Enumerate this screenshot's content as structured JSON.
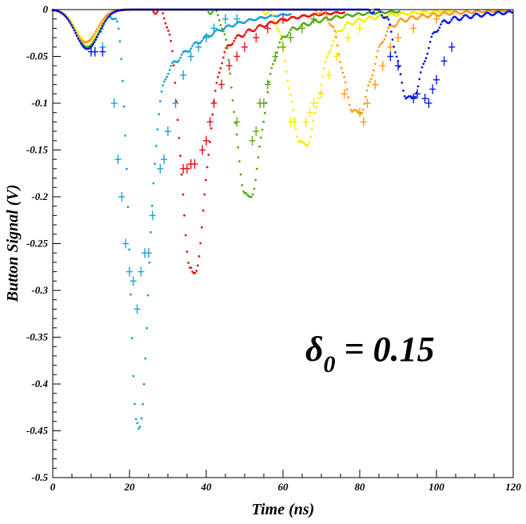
{
  "chart_data": {
    "type": "scatter",
    "title": "",
    "xlabel": "Time (ns)",
    "ylabel": "Button Signal (V)",
    "xlim": [
      0,
      120
    ],
    "ylim": [
      -0.5,
      0
    ],
    "x_ticks": [
      0,
      20,
      40,
      60,
      80,
      100,
      120
    ],
    "x_tick_labels": [
      "0",
      "20",
      "40",
      "60",
      "80",
      "100",
      "120"
    ],
    "y_ticks": [
      0,
      -0.05,
      -0.1,
      -0.15,
      -0.2,
      -0.25,
      -0.3,
      -0.35,
      -0.4,
      -0.45,
      -0.5
    ],
    "y_tick_labels": [
      "0",
      "-0.05",
      "-0.1",
      "-0.15",
      "-0.2",
      "-0.25",
      "-0.3",
      "-0.35",
      "-0.4",
      "-0.45",
      "-0.5"
    ],
    "grid": false,
    "legend": "none",
    "annotation": {
      "symbol": "δ",
      "subscript": "0",
      "text": " = 0.15"
    },
    "series": [
      {
        "color": "#1aa3d6",
        "precursor_peak": {
          "t": 9,
          "v": -0.04
        },
        "main_peak": {
          "t": 22,
          "v": -0.44
        },
        "width": 2.0,
        "measured": [
          [
            13,
            -0.04
          ],
          [
            16,
            -0.1
          ],
          [
            17,
            -0.16
          ],
          [
            18,
            -0.2
          ],
          [
            19,
            -0.25
          ],
          [
            20,
            -0.28
          ],
          [
            21,
            -0.29
          ],
          [
            22,
            -0.32
          ],
          [
            23,
            -0.28
          ],
          [
            24,
            -0.26
          ],
          [
            25,
            -0.26
          ],
          [
            26,
            -0.22
          ],
          [
            28,
            -0.17
          ],
          [
            29,
            -0.16
          ],
          [
            30,
            -0.13
          ],
          [
            32,
            -0.1
          ],
          [
            34,
            -0.07
          ],
          [
            36,
            -0.05
          ],
          [
            38,
            -0.04
          ],
          [
            40,
            -0.03
          ],
          [
            42,
            -0.02
          ],
          [
            45,
            -0.01
          ],
          [
            48,
            -0.01
          ]
        ]
      },
      {
        "color": "#e61414",
        "precursor_peak": {
          "t": 9,
          "v": -0.04
        },
        "main_peak": {
          "t": 36,
          "v": -0.275
        },
        "width": 2.6,
        "measured": [
          [
            34,
            -0.17
          ],
          [
            35,
            -0.17
          ],
          [
            36,
            -0.165
          ],
          [
            37,
            -0.165
          ],
          [
            39,
            -0.15
          ],
          [
            40,
            -0.14
          ],
          [
            41,
            -0.12
          ],
          [
            42,
            -0.1
          ],
          [
            44,
            -0.08
          ],
          [
            46,
            -0.06
          ],
          [
            48,
            -0.05
          ],
          [
            50,
            -0.04
          ],
          [
            53,
            -0.03
          ],
          [
            56,
            -0.02
          ],
          [
            60,
            -0.01
          ]
        ]
      },
      {
        "color": "#55aa11",
        "precursor_peak": {
          "t": 9,
          "v": -0.04
        },
        "main_peak": {
          "t": 50.3,
          "v": -0.195
        },
        "width": 2.8,
        "measured": [
          [
            48,
            -0.12
          ],
          [
            52,
            -0.14
          ],
          [
            53,
            -0.13
          ],
          [
            54,
            -0.1
          ],
          [
            55,
            -0.1
          ],
          [
            56,
            -0.08
          ],
          [
            58,
            -0.05
          ],
          [
            60,
            -0.04
          ],
          [
            62,
            -0.03
          ],
          [
            65,
            -0.02
          ],
          [
            68,
            -0.01
          ]
        ]
      },
      {
        "color": "#f2ee00",
        "precursor_peak": {
          "t": 9,
          "v": -0.035
        },
        "main_peak": {
          "t": 64.7,
          "v": -0.14
        },
        "width": 3.0,
        "measured": [
          [
            62,
            -0.12
          ],
          [
            63,
            -0.12
          ],
          [
            66,
            -0.12
          ],
          [
            67,
            -0.11
          ],
          [
            68,
            -0.1
          ],
          [
            70,
            -0.09
          ],
          [
            72,
            -0.07
          ],
          [
            74,
            -0.05
          ],
          [
            77,
            -0.03
          ],
          [
            80,
            -0.02
          ]
        ]
      },
      {
        "color": "#ff9a1a",
        "precursor_peak": {
          "t": 8.5,
          "v": -0.035
        },
        "main_peak": {
          "t": 78.5,
          "v": -0.107
        },
        "width": 3.0,
        "measured": [
          [
            76,
            -0.09
          ],
          [
            80,
            -0.11
          ],
          [
            81,
            -0.12
          ],
          [
            82,
            -0.1
          ],
          [
            84,
            -0.08
          ],
          [
            86,
            -0.06
          ],
          [
            88,
            -0.04
          ],
          [
            90,
            -0.03
          ],
          [
            94,
            -0.02
          ],
          [
            100,
            -0.01
          ]
        ]
      },
      {
        "color": "#0a1ae6",
        "precursor_peak": {
          "t": 9,
          "v": -0.042
        },
        "main_peak": {
          "t": 92.5,
          "v": -0.093
        },
        "width": 2.6,
        "measured": [
          [
            10,
            -0.045
          ],
          [
            11,
            -0.045
          ],
          [
            13,
            -0.045
          ],
          [
            88,
            -0.05
          ],
          [
            90,
            -0.06
          ],
          [
            94,
            -0.095
          ],
          [
            95,
            -0.09
          ],
          [
            97,
            -0.095
          ],
          [
            98,
            -0.1
          ],
          [
            99,
            -0.085
          ],
          [
            100,
            -0.075
          ],
          [
            102,
            -0.055
          ],
          [
            104,
            -0.04
          ]
        ]
      }
    ]
  }
}
